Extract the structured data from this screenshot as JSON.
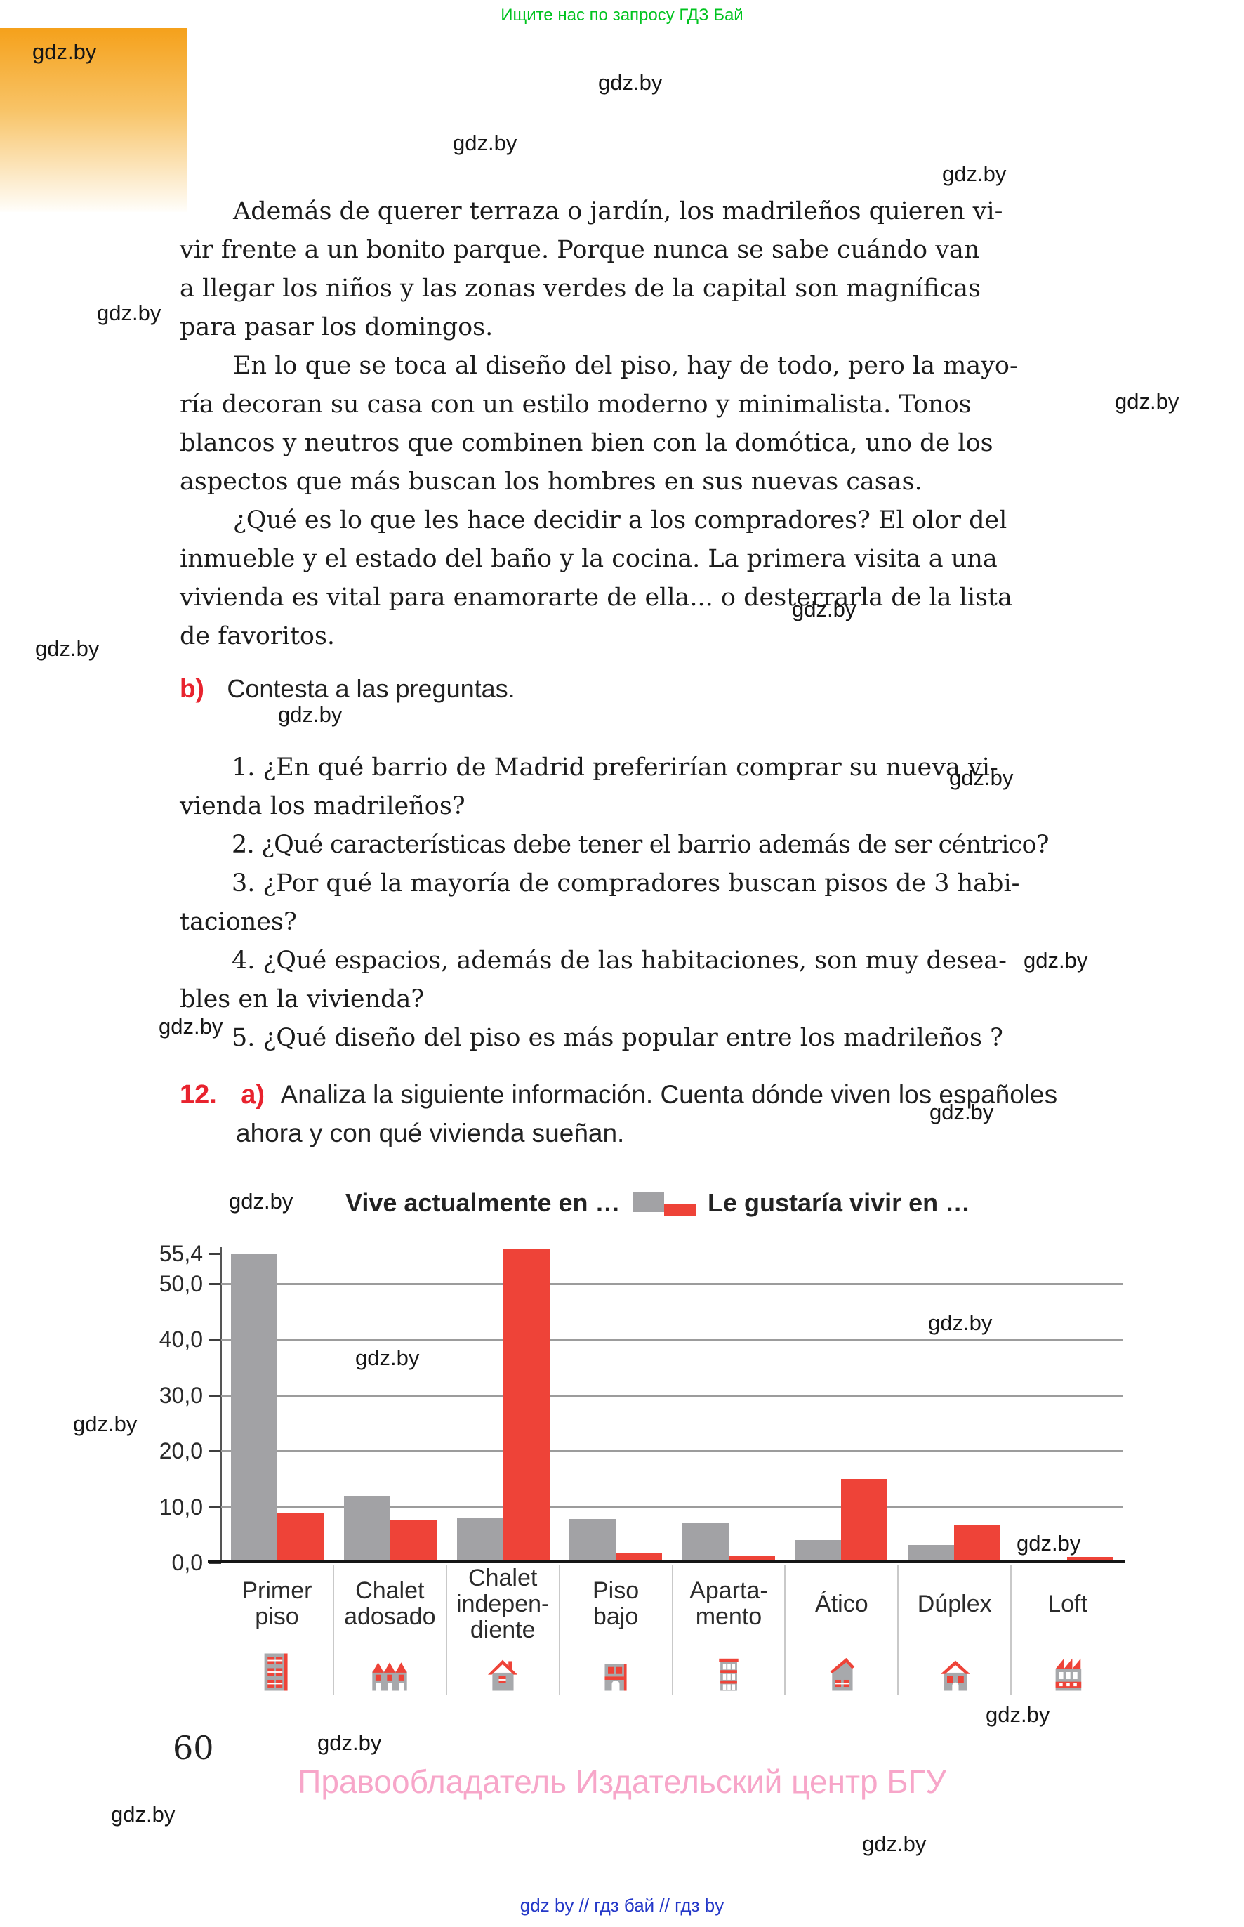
{
  "page": {
    "header_note": "Ищите нас по запросу ГДЗ Бай",
    "watermark": "gdz.by",
    "page_number": "60",
    "footer_copyright": "Правообладатель Издательский центр БГУ",
    "footer_links": "gdz by // гдз бай // гдз by"
  },
  "article": {
    "paragraphs": [
      [
        "Además de querer terraza o jardín, los madrileños quieren vi-",
        "vir frente a un bonito parque. Porque nunca se sabe cuándo van",
        "a llegar los niños y las zonas verdes de la capital son magníficas",
        "para pasar los domingos."
      ],
      [
        "En lo que se toca al diseño del piso, hay de todo, pero la mayo-",
        "ría decoran su casa con un estilo moderno y minimalista. Tonos",
        "blancos y neutros que combinen bien con la domótica, uno de los",
        "aspectos que más buscan los hombres en sus nuevas casas."
      ],
      [
        "¿Qué es lo que les hace decidir a los compradores? El olor del",
        "inmueble y el estado del baño y la cocina. La primera visita a una",
        "vivienda es vital para enamorarte de ella... o desterrarla de la lista",
        "de favoritos."
      ]
    ]
  },
  "task_b": {
    "label": "b)",
    "title": "Contesta a las preguntas.",
    "questions": [
      [
        "1. ¿En qué barrio de Madrid preferirían comprar su nueva vi-",
        "vienda los madrileños?"
      ],
      [
        "2. ¿Qué características debe tener el barrio además de ser céntrico?"
      ],
      [
        "3. ¿Por qué la mayoría de compradores buscan pisos de 3 habi-",
        "taciones?"
      ],
      [
        "4. ¿Qué espacios, además de las habitaciones, son muy desea-",
        "bles en la vivienda?"
      ],
      [
        "5. ¿Qué diseño del piso es más popular entre los madrileños ?"
      ]
    ]
  },
  "task_12": {
    "number": "12.",
    "letter": "a)",
    "instruction_line1": "Analiza la siguiente información. Cuenta dónde viven los españoles",
    "instruction_line2": "ahora y con qué vivienda sueñan."
  },
  "chart_data": {
    "type": "bar",
    "title": "",
    "legend_position": "top",
    "grid": true,
    "legend": [
      {
        "name": "Vive actualmente en …",
        "color": "#a2a2a5"
      },
      {
        "name": "Le gustaría vivir en …",
        "color": "#ee4338"
      }
    ],
    "categories": [
      "Primer piso",
      "Chalet adosado",
      "Chalet independiente",
      "Piso bajo",
      "Apartamento",
      "Ático",
      "Dúplex",
      "Loft"
    ],
    "categories_display": [
      "Primer\npiso",
      "Chalet\nadosado",
      "Chalet\nindepen-\ndiente",
      "Piso\nbajo",
      "Aparta-\nmento",
      "Ático",
      "Dúplex",
      "Loft"
    ],
    "series": [
      {
        "name": "Vive actualmente en …",
        "color": "#a2a2a5",
        "values": [
          55.4,
          12.0,
          8.1,
          7.8,
          7.0,
          4.0,
          3.2,
          0.3
        ]
      },
      {
        "name": "Le gustaría vivir en …",
        "color": "#ee4338",
        "values": [
          8.8,
          7.5,
          56.1,
          1.6,
          1.3,
          15.0,
          6.7,
          1.0
        ]
      }
    ],
    "yticks": [
      {
        "label": "55,4",
        "value": 55.4
      },
      {
        "label": "50,0",
        "value": 50
      },
      {
        "label": "40,0",
        "value": 40
      },
      {
        "label": "30,0",
        "value": 30
      },
      {
        "label": "20,0",
        "value": 20
      },
      {
        "label": "10,0",
        "value": 10
      },
      {
        "label": "0,0",
        "value": 0
      }
    ],
    "ylim": [
      0,
      56.5
    ],
    "category_icons": [
      "multistory-building-icon",
      "row-houses-icon",
      "detached-house-icon",
      "low-rise-building-icon",
      "apartment-tower-icon",
      "penthouse-house-icon",
      "duplex-house-icon",
      "industrial-loft-icon"
    ]
  }
}
